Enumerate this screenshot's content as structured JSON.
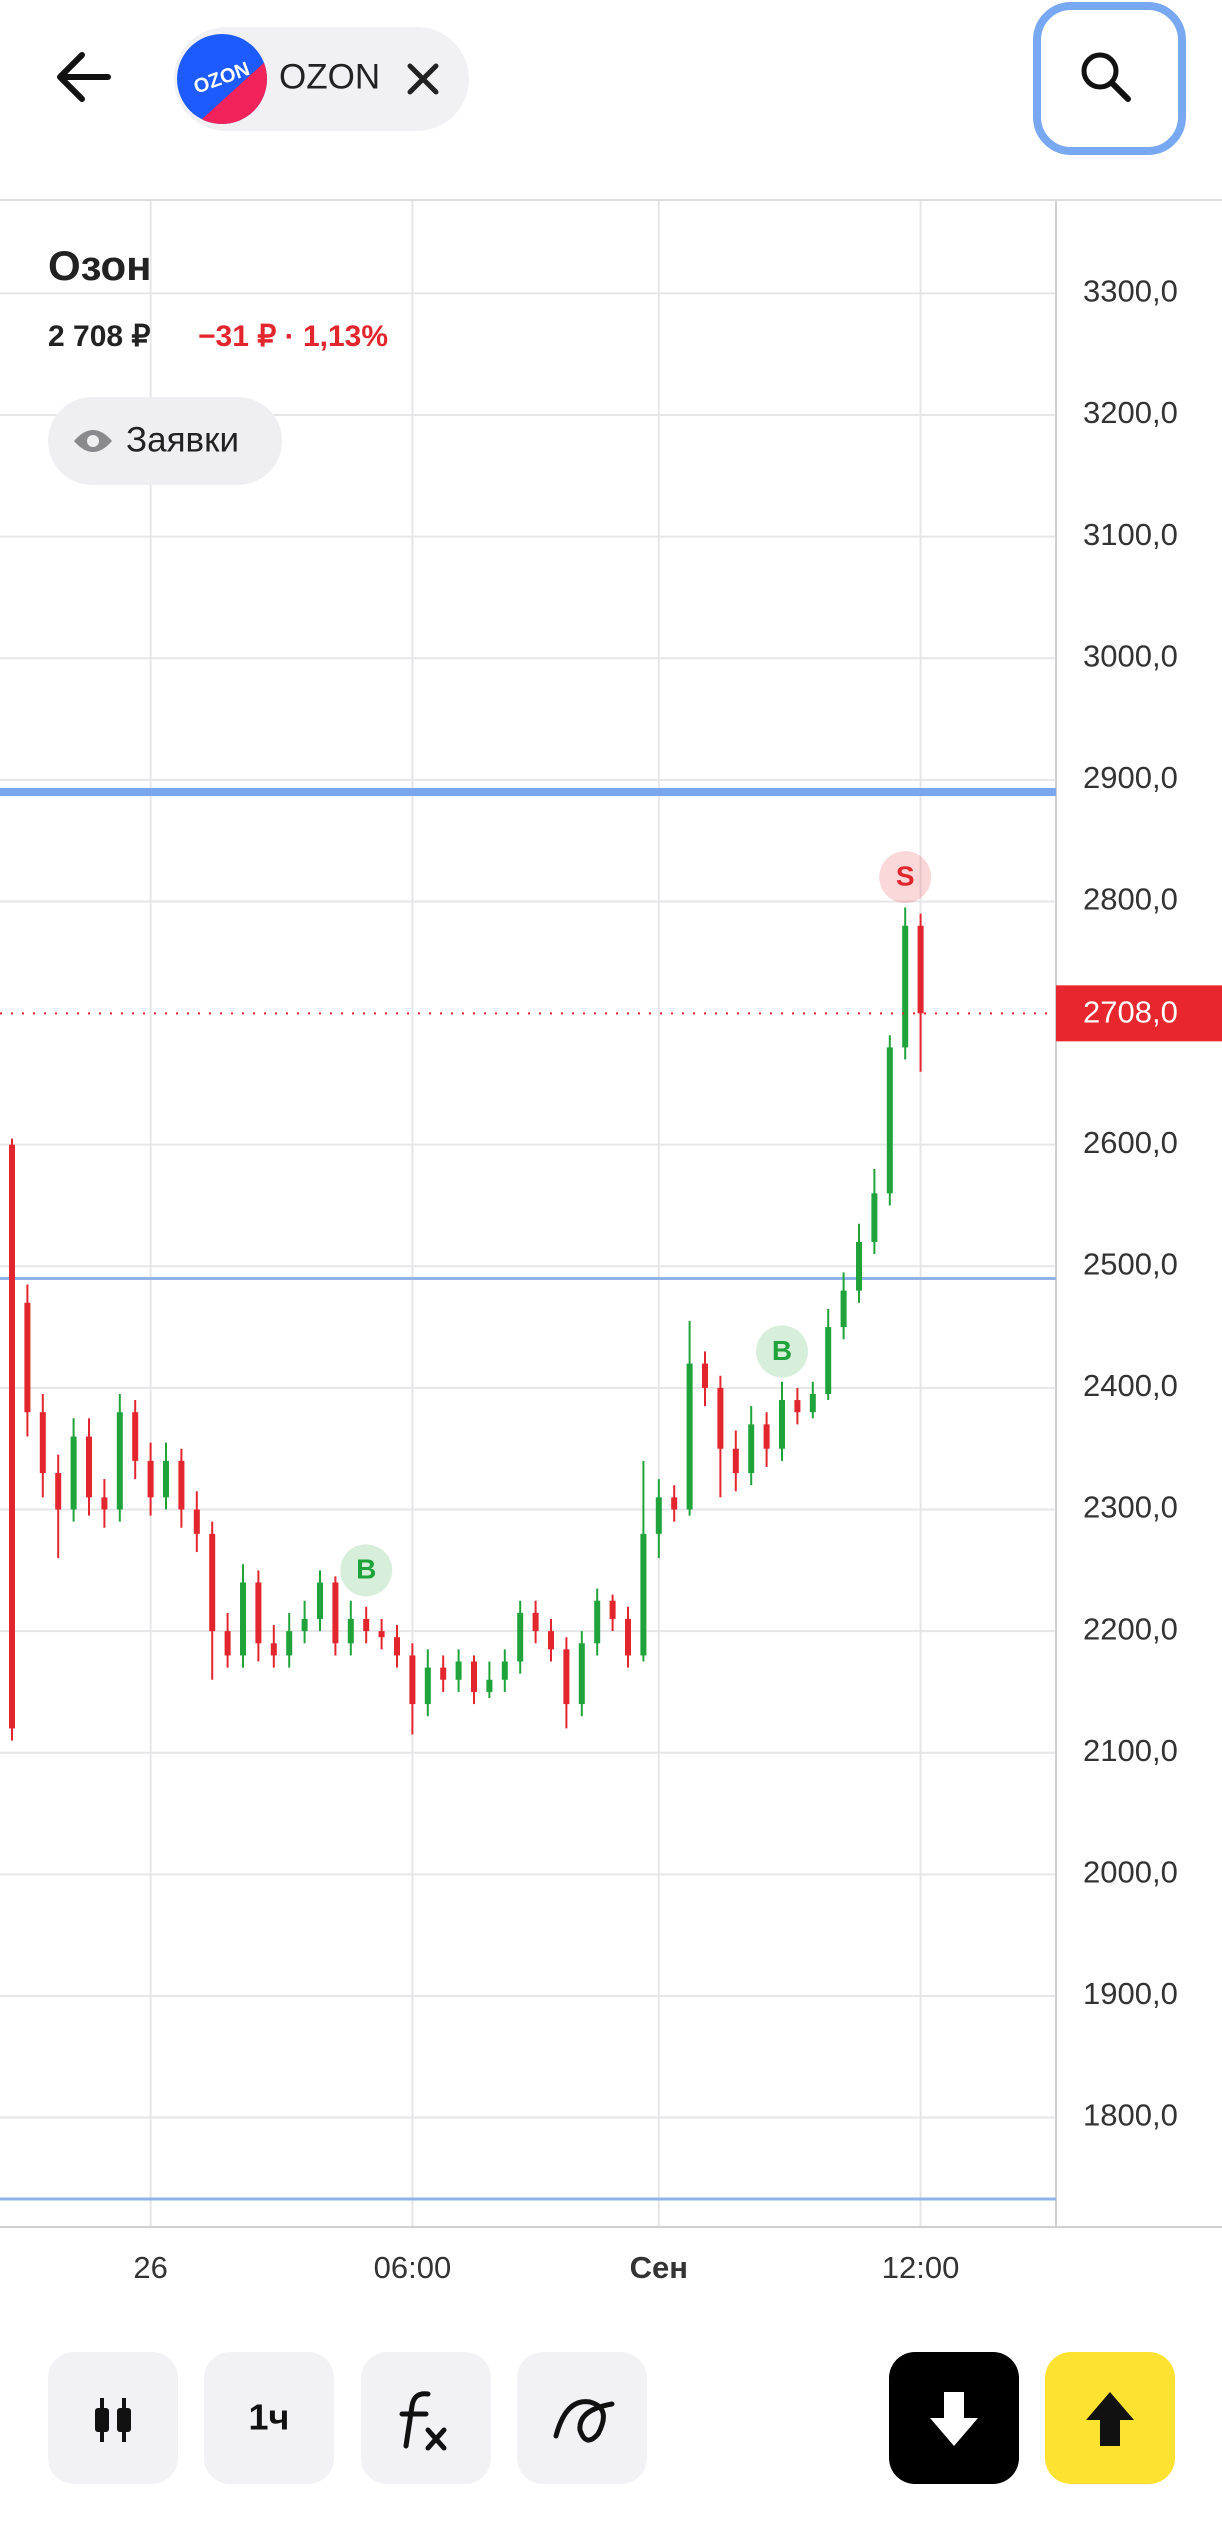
{
  "header": {
    "ticker": "OZON"
  },
  "chart_data": {
    "type": "candlestick",
    "title": "Озон",
    "price": "2 708 ₽",
    "change": "−31 ₽ · 1,13%",
    "orders_button": "Заявки",
    "categories": [
      null,
      null,
      null,
      null,
      null,
      null,
      null,
      null,
      null,
      "26",
      null,
      null,
      null,
      null,
      null,
      null,
      null,
      null,
      null,
      null,
      null,
      null,
      null,
      null,
      null,
      null,
      "06:00",
      null,
      null,
      null,
      null,
      null,
      null,
      null,
      null,
      null,
      null,
      null,
      null,
      null,
      null,
      null,
      "Сен",
      null,
      null,
      null,
      null,
      null,
      null,
      null,
      null,
      null,
      null,
      null,
      null,
      null,
      null,
      null,
      null,
      "12:00"
    ],
    "open": [
      2600,
      2470,
      2380,
      2330,
      2300,
      2360,
      2310,
      2300,
      2380,
      2340,
      2310,
      2340,
      2300,
      2280,
      2200,
      2180,
      2240,
      2190,
      2180,
      2200,
      2210,
      2240,
      2190,
      2210,
      2200,
      2195,
      2180,
      2140,
      2170,
      2160,
      2175,
      2150,
      2160,
      2175,
      2215,
      2200,
      2185,
      2140,
      2190,
      2225,
      2210,
      2180,
      2280,
      2310,
      2300,
      2420,
      2400,
      2350,
      2330,
      2370,
      2350,
      2390,
      2380,
      2395,
      2450,
      2480,
      2520,
      2560,
      2680,
      2780
    ],
    "high": [
      2605,
      2485,
      2395,
      2345,
      2375,
      2375,
      2325,
      2395,
      2390,
      2355,
      2355,
      2350,
      2315,
      2290,
      2215,
      2255,
      2250,
      2205,
      2215,
      2225,
      2250,
      2245,
      2225,
      2220,
      2210,
      2205,
      2190,
      2185,
      2180,
      2185,
      2180,
      2175,
      2185,
      2225,
      2225,
      2210,
      2195,
      2200,
      2235,
      2230,
      2220,
      2340,
      2325,
      2320,
      2455,
      2430,
      2410,
      2365,
      2385,
      2380,
      2405,
      2400,
      2405,
      2465,
      2495,
      2535,
      2580,
      2690,
      2795,
      2790
    ],
    "low": [
      2110,
      2360,
      2310,
      2260,
      2290,
      2295,
      2285,
      2290,
      2325,
      2295,
      2300,
      2285,
      2265,
      2160,
      2170,
      2170,
      2175,
      2170,
      2170,
      2190,
      2200,
      2180,
      2180,
      2190,
      2185,
      2170,
      2115,
      2130,
      2150,
      2150,
      2140,
      2145,
      2150,
      2165,
      2190,
      2175,
      2120,
      2130,
      2180,
      2200,
      2170,
      2175,
      2260,
      2290,
      2295,
      2385,
      2310,
      2315,
      2320,
      2335,
      2340,
      2370,
      2375,
      2390,
      2440,
      2470,
      2510,
      2550,
      2670,
      2660
    ],
    "close": [
      2120,
      2380,
      2330,
      2300,
      2360,
      2310,
      2300,
      2380,
      2340,
      2310,
      2340,
      2300,
      2280,
      2200,
      2180,
      2240,
      2190,
      2180,
      2200,
      2210,
      2240,
      2190,
      2210,
      2200,
      2195,
      2180,
      2140,
      2170,
      2160,
      2175,
      2150,
      2160,
      2175,
      2215,
      2200,
      2185,
      2140,
      2190,
      2225,
      2210,
      2180,
      2280,
      2310,
      2300,
      2420,
      2400,
      2350,
      2330,
      2370,
      2350,
      2390,
      2380,
      2395,
      2450,
      2480,
      2520,
      2560,
      2680,
      2780,
      2708
    ],
    "up_color": "#1fa33a",
    "down_color": "#e3262d",
    "ylim": [
      1710,
      3376
    ],
    "yticks": [
      {
        "value": 1800,
        "label": "1800,0"
      },
      {
        "value": 1900,
        "label": "1900,0"
      },
      {
        "value": 2000,
        "label": "2000,0"
      },
      {
        "value": 2100,
        "label": "2100,0"
      },
      {
        "value": 2200,
        "label": "2200,0"
      },
      {
        "value": 2300,
        "label": "2300,0"
      },
      {
        "value": 2400,
        "label": "2400,0"
      },
      {
        "value": 2500,
        "label": "2500,0"
      },
      {
        "value": 2600,
        "label": "2600,0"
      },
      {
        "value": 2800,
        "label": "2800,0"
      },
      {
        "value": 2900,
        "label": "2900,0"
      },
      {
        "value": 3000,
        "label": "3000,0"
      },
      {
        "value": 3100,
        "label": "3100,0"
      },
      {
        "value": 3200,
        "label": "3200,0"
      },
      {
        "value": 3300,
        "label": "3300,0"
      }
    ],
    "grid": true,
    "last": {
      "value": 2708,
      "label": "2708,0",
      "color": "#e8262d"
    },
    "levels": [
      {
        "value": 2890,
        "color": "#7aa6ee"
      },
      {
        "value": 2490,
        "color": "#8fb3ea"
      },
      {
        "value": 1733,
        "color": "#8fb3ea"
      }
    ],
    "markers": [
      {
        "index": 23,
        "value": 2250,
        "label": "B",
        "color": "#1fa33a"
      },
      {
        "index": 50,
        "value": 2430,
        "label": "B",
        "color": "#1fa33a"
      },
      {
        "index": 58,
        "value": 2820,
        "label": "S",
        "color": "#e3262d"
      }
    ]
  },
  "toolbar": {
    "interval": "1ч"
  }
}
